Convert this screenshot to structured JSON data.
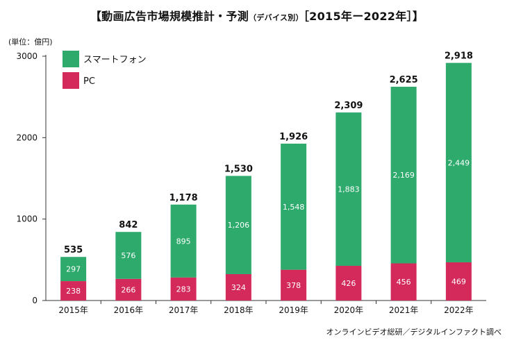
{
  "title_main": "【動画広告市場規模推計・予測",
  "title_sub": "（デバイス別）",
  "title_end": "［2015年ー2022年］】",
  "unit_label": "(単位：億円)",
  "source": "オンラインビデオ総研／デジタルインファクト調べ",
  "colors": {
    "smartphone": "#2eaa6c",
    "pc": "#d42a5b",
    "axis": "#333333"
  },
  "chart_data": {
    "type": "bar",
    "stacked": true,
    "categories": [
      "2015年",
      "2016年",
      "2017年",
      "2018年",
      "2019年",
      "2020年",
      "2021年",
      "2022年"
    ],
    "series": [
      {
        "name": "PC",
        "values": [
          238,
          266,
          283,
          324,
          378,
          426,
          456,
          469
        ]
      },
      {
        "name": "スマートフォン",
        "values": [
          297,
          576,
          895,
          1206,
          1548,
          1883,
          2169,
          2449
        ]
      }
    ],
    "totals": [
      "535",
      "842",
      "1,178",
      "1,530",
      "1,926",
      "2,309",
      "2,625",
      "2,918"
    ],
    "value_labels": {
      "PC": [
        "238",
        "266",
        "283",
        "324",
        "378",
        "426",
        "456",
        "469"
      ],
      "スマートフォン": [
        "297",
        "576",
        "895",
        "1,206",
        "1,548",
        "1,883",
        "2,169",
        "2,449"
      ]
    },
    "ylim": [
      0,
      3000
    ],
    "yticks": [
      "0",
      "1000",
      "2000",
      "3000"
    ],
    "legend_position": "top-left"
  }
}
